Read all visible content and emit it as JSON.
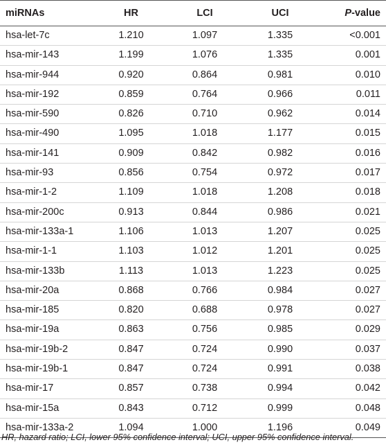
{
  "table": {
    "headers": {
      "mirna": "miRNAs",
      "hr": "HR",
      "lci": "LCI",
      "uci": "UCI",
      "p_italic": "P",
      "p_rest": "-value"
    },
    "rows": [
      [
        "hsa-let-7c",
        "1.210",
        "1.097",
        "1.335",
        "<0.001"
      ],
      [
        "hsa-mir-143",
        "1.199",
        "1.076",
        "1.335",
        "0.001"
      ],
      [
        "hsa-mir-944",
        "0.920",
        "0.864",
        "0.981",
        "0.010"
      ],
      [
        "hsa-mir-192",
        "0.859",
        "0.764",
        "0.966",
        "0.011"
      ],
      [
        "hsa-mir-590",
        "0.826",
        "0.710",
        "0.962",
        "0.014"
      ],
      [
        "hsa-mir-490",
        "1.095",
        "1.018",
        "1.177",
        "0.015"
      ],
      [
        "hsa-mir-141",
        "0.909",
        "0.842",
        "0.982",
        "0.016"
      ],
      [
        "hsa-mir-93",
        "0.856",
        "0.754",
        "0.972",
        "0.017"
      ],
      [
        "hsa-mir-1-2",
        "1.109",
        "1.018",
        "1.208",
        "0.018"
      ],
      [
        "hsa-mir-200c",
        "0.913",
        "0.844",
        "0.986",
        "0.021"
      ],
      [
        "hsa-mir-133a-1",
        "1.106",
        "1.013",
        "1.207",
        "0.025"
      ],
      [
        "hsa-mir-1-1",
        "1.103",
        "1.012",
        "1.201",
        "0.025"
      ],
      [
        "hsa-mir-133b",
        "1.113",
        "1.013",
        "1.223",
        "0.025"
      ],
      [
        "hsa-mir-20a",
        "0.868",
        "0.766",
        "0.984",
        "0.027"
      ],
      [
        "hsa-mir-185",
        "0.820",
        "0.688",
        "0.978",
        "0.027"
      ],
      [
        "hsa-mir-19a",
        "0.863",
        "0.756",
        "0.985",
        "0.029"
      ],
      [
        "hsa-mir-19b-2",
        "0.847",
        "0.724",
        "0.990",
        "0.037"
      ],
      [
        "hsa-mir-19b-1",
        "0.847",
        "0.724",
        "0.991",
        "0.038"
      ],
      [
        "hsa-mir-17",
        "0.857",
        "0.738",
        "0.994",
        "0.042"
      ],
      [
        "hsa-mir-15a",
        "0.843",
        "0.712",
        "0.999",
        "0.048"
      ],
      [
        "hsa-mir-133a-2",
        "1.094",
        "1.000",
        "1.196",
        "0.049"
      ]
    ]
  },
  "footnote": "HR, hazard ratio; LCI, lower 95% confidence interval; UCI, upper 95% confidence interval."
}
